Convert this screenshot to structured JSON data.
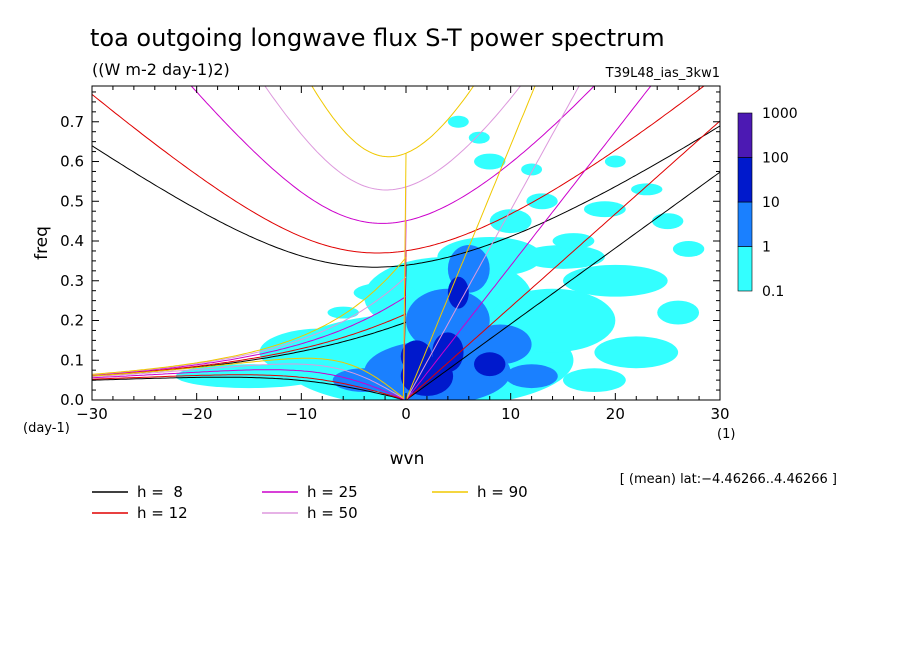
{
  "chart_data": {
    "type": "heatmap",
    "title": "toa outgoing longwave flux S-T power spectrum",
    "units": "((W m-2 day-1)2)",
    "run_label": "T39L48_ias_3kw1",
    "xlabel": "wvn",
    "x_unit": "(1)",
    "ylabel": "freq",
    "y_unit": "(day-1)",
    "xlim": [
      -30,
      30
    ],
    "ylim": [
      0,
      0.79
    ],
    "x_ticks": [
      "−30",
      "−20",
      "−10",
      "0",
      "10",
      "20",
      "30"
    ],
    "y_ticks": [
      "0.0",
      "0.1",
      "0.2",
      "0.3",
      "0.4",
      "0.5",
      "0.6",
      "0.7"
    ],
    "grid": false,
    "region_note": "[ (mean) lat:−4.46266..4.46266 ]",
    "colorbar": {
      "levels": [
        "0.1",
        "1",
        "10",
        "100",
        "1000"
      ],
      "colors": [
        "#33ffff",
        "#1a80ff",
        "#0019cc",
        "#4c19b3"
      ]
    },
    "dispersion_curves": [
      {
        "label": "h =  8",
        "h": 8,
        "color": "#000000"
      },
      {
        "label": "h = 12",
        "h": 12,
        "color": "#e00000"
      },
      {
        "label": "h = 25",
        "h": 25,
        "color": "#cc00cc"
      },
      {
        "label": "h = 50",
        "h": 50,
        "color": "#dd99dd"
      },
      {
        "label": "h = 90",
        "h": 90,
        "color": "#f0c800"
      }
    ],
    "power_blobs": [
      {
        "x": 2,
        "y": 0.06,
        "rx": 2.5,
        "ry": 0.05,
        "level": 3
      },
      {
        "x": 1,
        "y": 0.11,
        "rx": 1.5,
        "ry": 0.04,
        "level": 3
      },
      {
        "x": 4,
        "y": 0.12,
        "rx": 1.5,
        "ry": 0.05,
        "level": 3
      },
      {
        "x": 5,
        "y": 0.27,
        "rx": 1.0,
        "ry": 0.04,
        "level": 3
      },
      {
        "x": 8,
        "y": 0.09,
        "rx": 1.5,
        "ry": 0.03,
        "level": 3
      },
      {
        "x": 3,
        "y": 0.07,
        "rx": 7,
        "ry": 0.08,
        "level": 2
      },
      {
        "x": 4,
        "y": 0.2,
        "rx": 4,
        "ry": 0.08,
        "level": 2
      },
      {
        "x": 9,
        "y": 0.14,
        "rx": 3,
        "ry": 0.05,
        "level": 2
      },
      {
        "x": 6,
        "y": 0.33,
        "rx": 2,
        "ry": 0.06,
        "level": 2
      },
      {
        "x": -4,
        "y": 0.05,
        "rx": 3,
        "ry": 0.03,
        "level": 2
      },
      {
        "x": 12,
        "y": 0.06,
        "rx": 2.5,
        "ry": 0.03,
        "level": 2
      },
      {
        "x": 2,
        "y": 0.1,
        "rx": 14,
        "ry": 0.12,
        "level": 1
      },
      {
        "x": 4,
        "y": 0.26,
        "rx": 8,
        "ry": 0.1,
        "level": 1
      },
      {
        "x": 8,
        "y": 0.36,
        "rx": 5,
        "ry": 0.05,
        "level": 1
      },
      {
        "x": 14,
        "y": 0.2,
        "rx": 6,
        "ry": 0.08,
        "level": 1
      },
      {
        "x": -8,
        "y": 0.12,
        "rx": 6,
        "ry": 0.06,
        "level": 1
      },
      {
        "x": -15,
        "y": 0.06,
        "rx": 7,
        "ry": 0.03,
        "level": 1
      },
      {
        "x": 15,
        "y": 0.36,
        "rx": 4,
        "ry": 0.03,
        "level": 1
      },
      {
        "x": 20,
        "y": 0.3,
        "rx": 5,
        "ry": 0.04,
        "level": 1
      },
      {
        "x": 22,
        "y": 0.12,
        "rx": 4,
        "ry": 0.04,
        "level": 1
      },
      {
        "x": 10,
        "y": 0.45,
        "rx": 2,
        "ry": 0.03,
        "level": 1
      },
      {
        "x": 13,
        "y": 0.5,
        "rx": 1.5,
        "ry": 0.02,
        "level": 1
      },
      {
        "x": 19,
        "y": 0.48,
        "rx": 2,
        "ry": 0.02,
        "level": 1
      },
      {
        "x": 23,
        "y": 0.53,
        "rx": 1.5,
        "ry": 0.015,
        "level": 1
      },
      {
        "x": 25,
        "y": 0.45,
        "rx": 1.5,
        "ry": 0.02,
        "level": 1
      },
      {
        "x": 8,
        "y": 0.6,
        "rx": 1.5,
        "ry": 0.02,
        "level": 1
      },
      {
        "x": 7,
        "y": 0.66,
        "rx": 1.0,
        "ry": 0.015,
        "level": 1
      },
      {
        "x": 5,
        "y": 0.7,
        "rx": 1.0,
        "ry": 0.015,
        "level": 1
      },
      {
        "x": 16,
        "y": 0.4,
        "rx": 2,
        "ry": 0.02,
        "level": 1
      },
      {
        "x": 27,
        "y": 0.38,
        "rx": 1.5,
        "ry": 0.02,
        "level": 1
      },
      {
        "x": 26,
        "y": 0.22,
        "rx": 2,
        "ry": 0.03,
        "level": 1
      },
      {
        "x": 18,
        "y": 0.05,
        "rx": 3,
        "ry": 0.03,
        "level": 1
      },
      {
        "x": -2,
        "y": 0.27,
        "rx": 3,
        "ry": 0.025,
        "level": 1
      },
      {
        "x": -6,
        "y": 0.22,
        "rx": 1.5,
        "ry": 0.015,
        "level": 1
      },
      {
        "x": 12,
        "y": 0.58,
        "rx": 1.0,
        "ry": 0.015,
        "level": 1
      },
      {
        "x": 20,
        "y": 0.6,
        "rx": 1.0,
        "ry": 0.015,
        "level": 1
      }
    ]
  }
}
